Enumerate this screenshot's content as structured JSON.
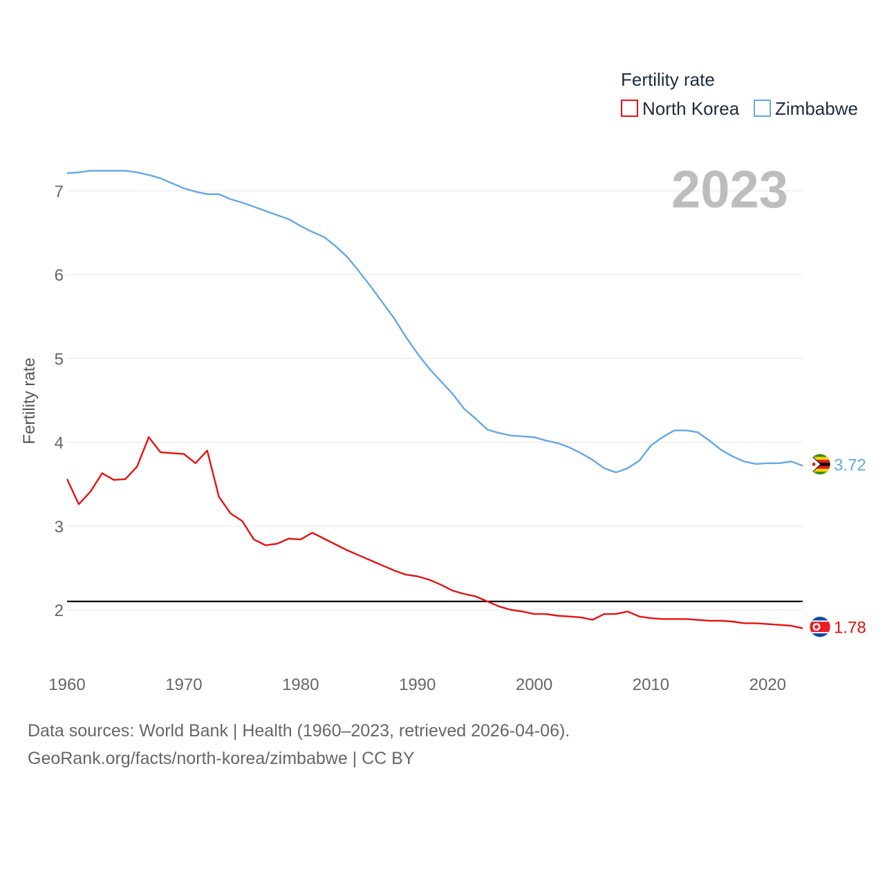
{
  "chart_data": {
    "type": "line",
    "xlabel": "",
    "ylabel": "Fertility rate",
    "xlim": [
      1960,
      2023
    ],
    "ylim": [
      1.5,
      7.5
    ],
    "xticks": [
      1960,
      1970,
      1980,
      1990,
      2000,
      2010,
      2020
    ],
    "yticks": [
      2,
      3,
      4,
      5,
      6,
      7
    ],
    "legend_title": "Fertility rate",
    "legend_position": "top-right",
    "current_year": "2023",
    "reference_line": 2.1,
    "x": [
      1960,
      1961,
      1962,
      1963,
      1964,
      1965,
      1966,
      1967,
      1968,
      1969,
      1970,
      1971,
      1972,
      1973,
      1974,
      1975,
      1976,
      1977,
      1978,
      1979,
      1980,
      1981,
      1982,
      1983,
      1984,
      1985,
      1986,
      1987,
      1988,
      1989,
      1990,
      1991,
      1992,
      1993,
      1994,
      1995,
      1996,
      1997,
      1998,
      1999,
      2000,
      2001,
      2002,
      2003,
      2004,
      2005,
      2006,
      2007,
      2008,
      2009,
      2010,
      2011,
      2012,
      2013,
      2014,
      2015,
      2016,
      2017,
      2018,
      2019,
      2020,
      2021,
      2022,
      2023
    ],
    "series": [
      {
        "name": "North Korea",
        "color": "#e8100f",
        "end_label": "1.78",
        "flag": "north-korea-flag-icon",
        "values": [
          3.56,
          3.26,
          3.41,
          3.63,
          3.55,
          3.56,
          3.71,
          4.06,
          3.88,
          3.87,
          3.86,
          3.75,
          3.9,
          3.35,
          3.15,
          3.06,
          2.84,
          2.77,
          2.79,
          2.85,
          2.84,
          2.92,
          2.85,
          2.78,
          2.71,
          2.65,
          2.59,
          2.53,
          2.47,
          2.42,
          2.4,
          2.36,
          2.3,
          2.23,
          2.19,
          2.16,
          2.1,
          2.04,
          2.0,
          1.98,
          1.95,
          1.95,
          1.93,
          1.92,
          1.91,
          1.88,
          1.95,
          1.95,
          1.98,
          1.92,
          1.9,
          1.89,
          1.89,
          1.89,
          1.88,
          1.87,
          1.87,
          1.86,
          1.84,
          1.84,
          1.83,
          1.82,
          1.81,
          1.78
        ]
      },
      {
        "name": "Zimbabwe",
        "color": "#61a8e8",
        "end_label": "3.72",
        "flag": "zimbabwe-flag-icon",
        "values": [
          7.21,
          7.22,
          7.24,
          7.24,
          7.24,
          7.24,
          7.22,
          7.19,
          7.15,
          7.09,
          7.03,
          6.99,
          6.96,
          6.96,
          6.9,
          6.86,
          6.81,
          6.76,
          6.71,
          6.66,
          6.58,
          6.51,
          6.45,
          6.34,
          6.21,
          6.04,
          5.86,
          5.67,
          5.48,
          5.26,
          5.06,
          4.88,
          4.73,
          4.58,
          4.4,
          4.28,
          4.15,
          4.11,
          4.08,
          4.07,
          4.06,
          4.02,
          3.99,
          3.94,
          3.87,
          3.79,
          3.69,
          3.64,
          3.69,
          3.78,
          3.96,
          4.06,
          4.14,
          4.14,
          4.12,
          4.02,
          3.91,
          3.83,
          3.77,
          3.74,
          3.75,
          3.75,
          3.77,
          3.72
        ]
      }
    ]
  },
  "footer": {
    "sources": "Data sources: World Bank | Health (1960–2023, retrieved 2026-04-06).",
    "attribution": "GeoRank.org/facts/north-korea/zimbabwe | CC BY"
  }
}
